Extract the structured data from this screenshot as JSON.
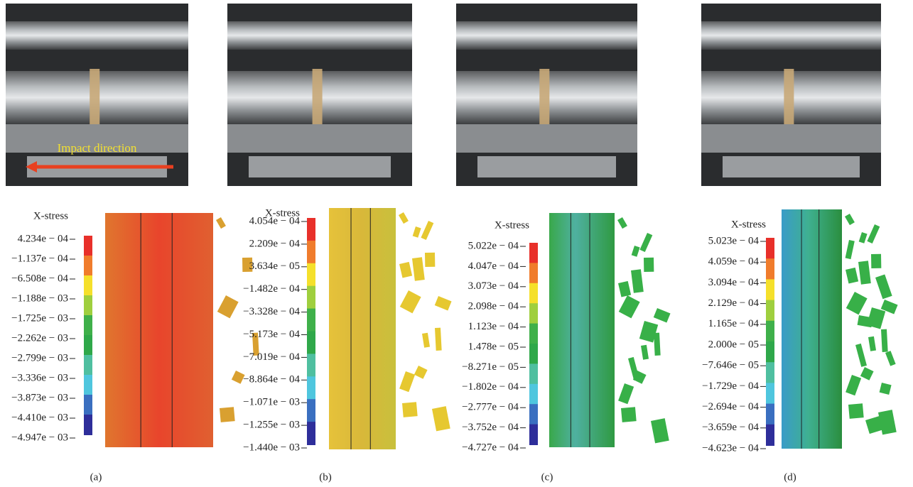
{
  "panels": [
    {
      "label": "(a)",
      "annotation": "Impact direction",
      "colorbar": {
        "title": "X-stress",
        "ticks": [
          "4.234e − 04",
          "−1.137e − 04",
          "−6.508e − 04",
          "−1.188e − 03",
          "−1.725e − 03",
          "−2.262e − 03",
          "−2.799e − 03",
          "−3.336e − 03",
          "−3.873e − 03",
          "−4.410e − 03",
          "−4.947e − 03"
        ]
      }
    },
    {
      "label": "(b)",
      "colorbar": {
        "title": "X-stress",
        "ticks": [
          "4.054e − 04",
          "2.209e − 04",
          "3.634e − 05",
          "−1.482e − 04",
          "−3.328e − 04",
          "−5.173e − 04",
          "−7.019e − 04",
          "−8.864e − 04",
          "−1.071e − 03",
          "−1.255e − 03",
          "−1.440e − 03"
        ]
      }
    },
    {
      "label": "(c)",
      "colorbar": {
        "title": "X-stress",
        "ticks": [
          "5.022e − 04",
          "4.047e − 04",
          "3.073e − 04",
          "2.098e − 04",
          "1.123e − 04",
          "1.478e − 05",
          "−8.271e − 05",
          "−1.802e − 04",
          "−2.777e − 04",
          "−3.752e − 04",
          "−4.727e − 04"
        ]
      }
    },
    {
      "label": "(d)",
      "colorbar": {
        "title": "X-stress",
        "ticks": [
          "5.023e − 04",
          "4.059e − 04",
          "3.094e − 04",
          "2.129e − 04",
          "1.165e − 04",
          "2.000e − 05",
          "−7.646e − 05",
          "−1.729e − 04",
          "−2.694e − 04",
          "−3.659e − 04",
          "−4.623e − 04"
        ]
      }
    }
  ]
}
